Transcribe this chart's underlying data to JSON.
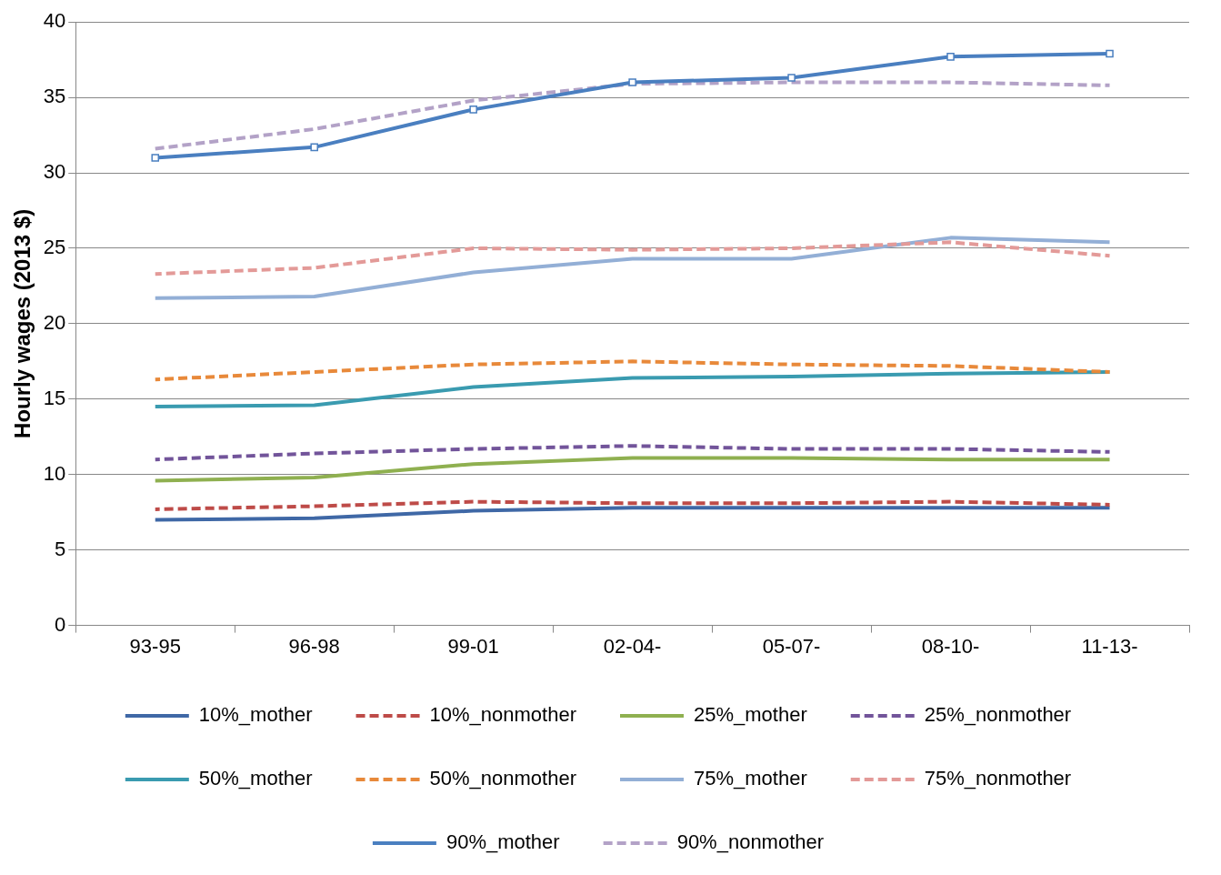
{
  "chart_data": {
    "type": "line",
    "ylabel": "Hourly wages (2013 $)",
    "categories": [
      "93-95",
      "96-98",
      "99-01",
      "02-04-",
      "05-07-",
      "08-10-",
      "11-13-"
    ],
    "ylim": [
      0,
      40
    ],
    "yticks": [
      0,
      5,
      10,
      15,
      20,
      25,
      30,
      35,
      40
    ],
    "grid": "y",
    "legend": "bottom",
    "marker": "none",
    "series": [
      {
        "name": "10%_mother",
        "color": "#3f68a6",
        "line_style": "solid",
        "values": [
          7.0,
          7.1,
          7.6,
          7.8,
          7.8,
          7.8,
          7.8
        ]
      },
      {
        "name": "10%_nonmother",
        "color": "#be4b48",
        "line_style": "dashed",
        "values": [
          7.7,
          7.9,
          8.2,
          8.1,
          8.1,
          8.2,
          8.0
        ]
      },
      {
        "name": "25%_mother",
        "color": "#8fb050",
        "line_style": "solid",
        "values": [
          9.6,
          9.8,
          10.7,
          11.1,
          11.1,
          11.0,
          11.0
        ]
      },
      {
        "name": "25%_nonmother",
        "color": "#72549a",
        "line_style": "dashed",
        "values": [
          11.0,
          11.4,
          11.7,
          11.9,
          11.7,
          11.7,
          11.5
        ]
      },
      {
        "name": "50%_mother",
        "color": "#3a9bb0",
        "line_style": "solid",
        "values": [
          14.5,
          14.6,
          15.8,
          16.4,
          16.5,
          16.7,
          16.8
        ]
      },
      {
        "name": "50%_nonmother",
        "color": "#e8893a",
        "line_style": "dashed",
        "values": [
          16.3,
          16.8,
          17.3,
          17.5,
          17.3,
          17.2,
          16.8
        ]
      },
      {
        "name": "75%_mother",
        "color": "#93afd6",
        "line_style": "solid",
        "values": [
          21.7,
          21.8,
          23.4,
          24.3,
          24.3,
          25.7,
          25.4
        ]
      },
      {
        "name": "75%_nonmother",
        "color": "#e39a98",
        "line_style": "dashed",
        "values": [
          23.3,
          23.7,
          25.0,
          24.9,
          25.0,
          25.4,
          24.5
        ]
      },
      {
        "name": "90%_mother",
        "color": "#4a7fc0",
        "line_style": "solid",
        "marker": "square",
        "values": [
          31.0,
          31.7,
          34.2,
          36.0,
          36.3,
          37.7,
          37.9
        ]
      },
      {
        "name": "90%_nonmother",
        "color": "#b3a2c7",
        "line_style": "dashed",
        "values": [
          31.6,
          32.9,
          34.8,
          35.9,
          36.0,
          36.0,
          35.8
        ]
      }
    ]
  }
}
